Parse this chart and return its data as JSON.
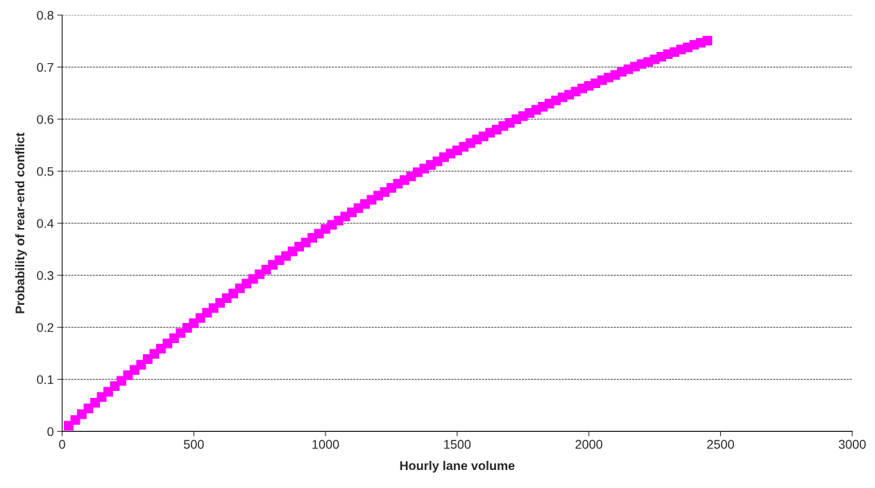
{
  "chart_data": {
    "type": "scatter",
    "xlabel": "Hourly lane volume",
    "ylabel": "Probability of rear-end conflict",
    "x": [
      25,
      50,
      75,
      100,
      125,
      150,
      175,
      200,
      225,
      250,
      275,
      300,
      325,
      350,
      375,
      400,
      425,
      450,
      475,
      500,
      525,
      550,
      575,
      600,
      625,
      650,
      675,
      700,
      725,
      750,
      775,
      800,
      825,
      850,
      875,
      900,
      925,
      950,
      975,
      1000,
      1025,
      1050,
      1075,
      1100,
      1125,
      1150,
      1175,
      1200,
      1225,
      1250,
      1275,
      1300,
      1325,
      1350,
      1375,
      1400,
      1425,
      1450,
      1475,
      1500,
      1525,
      1550,
      1575,
      1600,
      1625,
      1650,
      1675,
      1700,
      1725,
      1750,
      1775,
      1800,
      1825,
      1850,
      1875,
      1900,
      1925,
      1950,
      1975,
      2000,
      2025,
      2050,
      2075,
      2100,
      2125,
      2150,
      2175,
      2200,
      2225,
      2250,
      2275,
      2300,
      2325,
      2350,
      2375,
      2400,
      2425,
      2450
    ],
    "series": [
      {
        "color": "#ff00ff",
        "values": [
          0.011,
          0.022,
          0.033,
          0.044,
          0.055,
          0.066,
          0.076,
          0.087,
          0.097,
          0.108,
          0.118,
          0.128,
          0.139,
          0.149,
          0.159,
          0.169,
          0.179,
          0.189,
          0.199,
          0.208,
          0.218,
          0.228,
          0.237,
          0.247,
          0.256,
          0.265,
          0.275,
          0.284,
          0.293,
          0.302,
          0.311,
          0.32,
          0.329,
          0.337,
          0.346,
          0.355,
          0.363,
          0.372,
          0.38,
          0.389,
          0.397,
          0.405,
          0.413,
          0.421,
          0.429,
          0.437,
          0.445,
          0.453,
          0.46,
          0.468,
          0.476,
          0.483,
          0.49,
          0.498,
          0.505,
          0.512,
          0.519,
          0.527,
          0.534,
          0.54,
          0.547,
          0.554,
          0.561,
          0.567,
          0.574,
          0.58,
          0.587,
          0.593,
          0.6,
          0.606,
          0.612,
          0.618,
          0.624,
          0.63,
          0.636,
          0.642,
          0.647,
          0.653,
          0.659,
          0.664,
          0.669,
          0.675,
          0.68,
          0.685,
          0.691,
          0.696,
          0.701,
          0.706,
          0.71,
          0.715,
          0.72,
          0.725,
          0.729,
          0.734,
          0.738,
          0.743,
          0.747,
          0.751
        ]
      }
    ],
    "xlim": [
      0,
      3000
    ],
    "xticks": [
      0,
      500,
      1000,
      1500,
      2000,
      2500,
      3000
    ],
    "ylim": [
      0,
      0.8
    ],
    "yticks": [
      0,
      0.1,
      0.2,
      0.3,
      0.4,
      0.5,
      0.6,
      0.7,
      0.8
    ],
    "grid": "y",
    "marker": "square"
  }
}
